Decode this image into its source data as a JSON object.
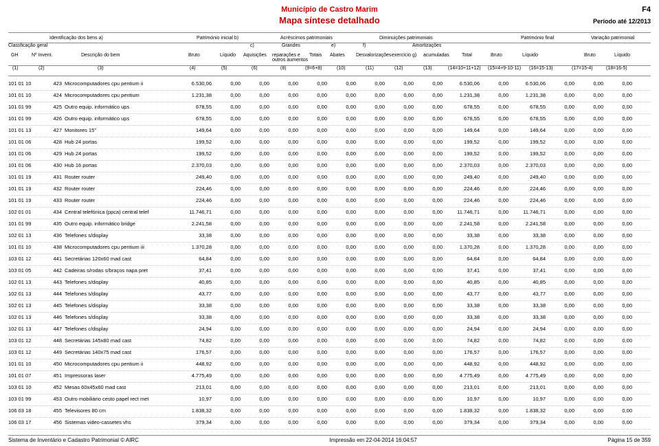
{
  "header": {
    "municipio": "Município de Castro Marim",
    "titulo": "Mapa síntese detalhado",
    "form": "F4",
    "periodo": "Período até 12/2013"
  },
  "groups": {
    "identificacao": "Identificação dos bens  a)",
    "pat_inicial": "Património inicial  b)",
    "acrescimos": "Acréscimos patrimoniais",
    "diminuicoes": "Diminuições patrimoniais",
    "pat_final": "Património final",
    "variacao": "Variação patrimonial"
  },
  "subhdr": {
    "classif": "Classficação geral",
    "gh": "GH",
    "ninvent": "Nº Invent.",
    "descricao": "Descrição do bem",
    "bruto": "Bruto",
    "liquido": "Líquido",
    "c": "c)",
    "aquisicoes": "Aquisições",
    "grandes": "Grandes reparações e outros aumentos",
    "totais": "Totais",
    "e": "e)",
    "abates": "Abates",
    "f": "f)",
    "desval": "Desvalorizações",
    "amort": "Amortizações",
    "exer": "exercício  g)",
    "acum": "acumuladas",
    "total": "Total"
  },
  "idx": {
    "i1": "(1)",
    "i2": "(2)",
    "i3": "(3)",
    "i4": "(4)",
    "i5": "(5)",
    "i6": "(6)",
    "i8": "(8)",
    "i9": "(9=6+8)",
    "i10": "(10)",
    "i11": "(11)",
    "i12": "(12)",
    "i13": "(13)",
    "i14": "(14=10+11+12)",
    "i15": "(15=4+9-10-11)",
    "i16": "(16=15-13)",
    "i17": "(17=15-4)",
    "i18": "(18=16-5)"
  },
  "rows": [
    {
      "gh": "101 01 10",
      "inv": "423",
      "desc": "Microcomputadores cpu pentium ii",
      "v": [
        "6.530,06",
        "0,00",
        "0,00",
        "0,00",
        "0,00",
        "0,00",
        "0,00",
        "0,00",
        "0,00",
        "6.530,06",
        "0,00",
        "6.530,06",
        "0,00",
        "0,00",
        "0,00"
      ]
    },
    {
      "gh": "101 01 10",
      "inv": "424",
      "desc": "Microcomputadores cpu pentium",
      "v": [
        "1.231,38",
        "0,00",
        "0,00",
        "0,00",
        "0,00",
        "0,00",
        "0,00",
        "0,00",
        "0,00",
        "1.231,38",
        "0,00",
        "1.231,38",
        "0,00",
        "0,00",
        "0,00"
      ]
    },
    {
      "gh": "101 01 99",
      "inv": "425",
      "desc": "Outro equip. informático ups",
      "v": [
        "678,55",
        "0,00",
        "0,00",
        "0,00",
        "0,00",
        "0,00",
        "0,00",
        "0,00",
        "0,00",
        "678,55",
        "0,00",
        "678,55",
        "0,00",
        "0,00",
        "0,00"
      ]
    },
    {
      "gh": "101 01 99",
      "inv": "426",
      "desc": "Outro equip. informático ups",
      "v": [
        "678,55",
        "0,00",
        "0,00",
        "0,00",
        "0,00",
        "0,00",
        "0,00",
        "0,00",
        "0,00",
        "678,55",
        "0,00",
        "678,55",
        "0,00",
        "0,00",
        "0,00"
      ]
    },
    {
      "gh": "101 01 13",
      "inv": "427",
      "desc": "Monitores 15\"",
      "v": [
        "149,64",
        "0,00",
        "0,00",
        "0,00",
        "0,00",
        "0,00",
        "0,00",
        "0,00",
        "0,00",
        "149,64",
        "0,00",
        "149,64",
        "0,00",
        "0,00",
        "0,00"
      ]
    },
    {
      "gh": "101 01 06",
      "inv": "428",
      "desc": "Hub 24 portas",
      "v": [
        "199,52",
        "0,00",
        "0,00",
        "0,00",
        "0,00",
        "0,00",
        "0,00",
        "0,00",
        "0,00",
        "199,52",
        "0,00",
        "199,52",
        "0,00",
        "0,00",
        "0,00"
      ]
    },
    {
      "gh": "101 01 06",
      "inv": "429",
      "desc": "Hub 24 portas",
      "v": [
        "199,52",
        "0,00",
        "0,00",
        "0,00",
        "0,00",
        "0,00",
        "0,00",
        "0,00",
        "0,00",
        "199,52",
        "0,00",
        "199,52",
        "0,00",
        "0,00",
        "0,00"
      ]
    },
    {
      "gh": "101 01 06",
      "inv": "430",
      "desc": "Hub 16 portas",
      "v": [
        "2.370,03",
        "0,00",
        "0,00",
        "0,00",
        "0,00",
        "0,00",
        "0,00",
        "0,00",
        "0,00",
        "2.370,03",
        "0,00",
        "2.370,03",
        "0,00",
        "0,00",
        "0,00"
      ]
    },
    {
      "gh": "101 01 19",
      "inv": "431",
      "desc": "Router router",
      "v": [
        "249,40",
        "0,00",
        "0,00",
        "0,00",
        "0,00",
        "0,00",
        "0,00",
        "0,00",
        "0,00",
        "249,40",
        "0,00",
        "249,40",
        "0,00",
        "0,00",
        "0,00"
      ]
    },
    {
      "gh": "101 01 19",
      "inv": "432",
      "desc": "Router router",
      "v": [
        "224,46",
        "0,00",
        "0,00",
        "0,00",
        "0,00",
        "0,00",
        "0,00",
        "0,00",
        "0,00",
        "224,46",
        "0,00",
        "224,46",
        "0,00",
        "0,00",
        "0,00"
      ]
    },
    {
      "gh": "101 01 19",
      "inv": "433",
      "desc": "Router router",
      "v": [
        "224,46",
        "0,00",
        "0,00",
        "0,00",
        "0,00",
        "0,00",
        "0,00",
        "0,00",
        "0,00",
        "224,46",
        "0,00",
        "224,46",
        "0,00",
        "0,00",
        "0,00"
      ]
    },
    {
      "gh": "102 01 01",
      "inv": "434",
      "desc": "Central telefónica (ppca) central telef",
      "v": [
        "11.746,71",
        "0,00",
        "0,00",
        "0,00",
        "0,00",
        "0,00",
        "0,00",
        "0,00",
        "0,00",
        "11.746,71",
        "0,00",
        "11.746,71",
        "0,00",
        "0,00",
        "0,00"
      ]
    },
    {
      "gh": "101 01 99",
      "inv": "435",
      "desc": "Outro equip. informático bridge",
      "v": [
        "2.241,58",
        "0,00",
        "0,00",
        "0,00",
        "0,00",
        "0,00",
        "0,00",
        "0,00",
        "0,00",
        "2.241,58",
        "0,00",
        "2.241,58",
        "0,00",
        "0,00",
        "0,00"
      ]
    },
    {
      "gh": "102 01 13",
      "inv": "436",
      "desc": "Telefones s/display",
      "v": [
        "33,38",
        "0,00",
        "0,00",
        "0,00",
        "0,00",
        "0,00",
        "0,00",
        "0,00",
        "0,00",
        "33,38",
        "0,00",
        "33,38",
        "0,00",
        "0,00",
        "0,00"
      ]
    },
    {
      "gh": "101 01 10",
      "inv": "438",
      "desc": "Microcomputadores cpu pentium iii",
      "v": [
        "1.370,28",
        "0,00",
        "0,00",
        "0,00",
        "0,00",
        "0,00",
        "0,00",
        "0,00",
        "0,00",
        "1.370,28",
        "0,00",
        "1.370,28",
        "0,00",
        "0,00",
        "0,00"
      ]
    },
    {
      "gh": "103 01 12",
      "inv": "441",
      "desc": "Secretárias 120x60 mad cast",
      "v": [
        "64,84",
        "0,00",
        "0,00",
        "0,00",
        "0,00",
        "0,00",
        "0,00",
        "0,00",
        "0,00",
        "64,84",
        "0,00",
        "64,84",
        "0,00",
        "0,00",
        "0,00"
      ]
    },
    {
      "gh": "103 01 05",
      "inv": "442",
      "desc": "Cadeiras s/rodas s/braços napa pret",
      "v": [
        "37,41",
        "0,00",
        "0,00",
        "0,00",
        "0,00",
        "0,00",
        "0,00",
        "0,00",
        "0,00",
        "37,41",
        "0,00",
        "37,41",
        "0,00",
        "0,00",
        "0,00"
      ]
    },
    {
      "gh": "102 01 13",
      "inv": "443",
      "desc": "Telefones s/display",
      "v": [
        "40,85",
        "0,00",
        "0,00",
        "0,00",
        "0,00",
        "0,00",
        "0,00",
        "0,00",
        "0,00",
        "40,85",
        "0,00",
        "40,85",
        "0,00",
        "0,00",
        "0,00"
      ]
    },
    {
      "gh": "102 01 13",
      "inv": "444",
      "desc": "Telefones s/display",
      "v": [
        "43,77",
        "0,00",
        "0,00",
        "0,00",
        "0,00",
        "0,00",
        "0,00",
        "0,00",
        "0,00",
        "43,77",
        "0,00",
        "43,77",
        "0,00",
        "0,00",
        "0,00"
      ]
    },
    {
      "gh": "102 01 13",
      "inv": "445",
      "desc": "Telefones s/display",
      "v": [
        "33,38",
        "0,00",
        "0,00",
        "0,00",
        "0,00",
        "0,00",
        "0,00",
        "0,00",
        "0,00",
        "33,38",
        "0,00",
        "33,38",
        "0,00",
        "0,00",
        "0,00"
      ]
    },
    {
      "gh": "102 01 13",
      "inv": "446",
      "desc": "Telefones s/display",
      "v": [
        "33,38",
        "0,00",
        "0,00",
        "0,00",
        "0,00",
        "0,00",
        "0,00",
        "0,00",
        "0,00",
        "33,38",
        "0,00",
        "33,38",
        "0,00",
        "0,00",
        "0,00"
      ]
    },
    {
      "gh": "102 01 13",
      "inv": "447",
      "desc": "Telefones c/display",
      "v": [
        "24,94",
        "0,00",
        "0,00",
        "0,00",
        "0,00",
        "0,00",
        "0,00",
        "0,00",
        "0,00",
        "24,94",
        "0,00",
        "24,94",
        "0,00",
        "0,00",
        "0,00"
      ]
    },
    {
      "gh": "103 01 12",
      "inv": "448",
      "desc": "Secretárias 145x80 mad cast",
      "v": [
        "74,82",
        "0,00",
        "0,00",
        "0,00",
        "0,00",
        "0,00",
        "0,00",
        "0,00",
        "0,00",
        "74,82",
        "0,00",
        "74,82",
        "0,00",
        "0,00",
        "0,00"
      ]
    },
    {
      "gh": "103 01 12",
      "inv": "449",
      "desc": "Secretárias 140x75 mad cast",
      "v": [
        "176,57",
        "0,00",
        "0,00",
        "0,00",
        "0,00",
        "0,00",
        "0,00",
        "0,00",
        "0,00",
        "176,57",
        "0,00",
        "176,57",
        "0,00",
        "0,00",
        "0,00"
      ]
    },
    {
      "gh": "101 01 10",
      "inv": "450",
      "desc": "Microcomputadores cpu pentium ii",
      "v": [
        "448,92",
        "0,00",
        "0,00",
        "0,00",
        "0,00",
        "0,00",
        "0,00",
        "0,00",
        "0,00",
        "448,92",
        "0,00",
        "448,92",
        "0,00",
        "0,00",
        "0,00"
      ]
    },
    {
      "gh": "101 01 07",
      "inv": "451",
      "desc": "Impressoras laser",
      "v": [
        "4.775,49",
        "0,00",
        "0,00",
        "0,00",
        "0,00",
        "0,00",
        "0,00",
        "0,00",
        "0,00",
        "4.775,49",
        "0,00",
        "4.775,49",
        "0,00",
        "0,00",
        "0,00"
      ]
    },
    {
      "gh": "103 01 10",
      "inv": "452",
      "desc": "Mesas 60x45x60 mad cast",
      "v": [
        "213,01",
        "0,00",
        "0,00",
        "0,00",
        "0,00",
        "0,00",
        "0,00",
        "0,00",
        "0,00",
        "213,01",
        "0,00",
        "213,01",
        "0,00",
        "0,00",
        "0,00"
      ]
    },
    {
      "gh": "103 01 99",
      "inv": "453",
      "desc": "Outro mobiliário cesto papel rect met",
      "v": [
        "10,97",
        "0,00",
        "0,00",
        "0,00",
        "0,00",
        "0,00",
        "0,00",
        "0,00",
        "0,00",
        "10,97",
        "0,00",
        "10,97",
        "0,00",
        "0,00",
        "0,00"
      ]
    },
    {
      "gh": "106 03 18",
      "inv": "455",
      "desc": "Televisores 80 cm",
      "v": [
        "1.838,32",
        "0,00",
        "0,00",
        "0,00",
        "0,00",
        "0,00",
        "0,00",
        "0,00",
        "0,00",
        "1.838,32",
        "0,00",
        "1.838,32",
        "0,00",
        "0,00",
        "0,00"
      ]
    },
    {
      "gh": "106 03 17",
      "inv": "456",
      "desc": "Sistemas video-cassetes vhs",
      "v": [
        "379,34",
        "0,00",
        "0,00",
        "0,00",
        "0,00",
        "0,00",
        "0,00",
        "0,00",
        "0,00",
        "379,34",
        "0,00",
        "379,34",
        "0,00",
        "0,00",
        "0,00"
      ]
    }
  ],
  "footer": {
    "left": "Sistema de Inventário e Cadastro Patrimonial © AIRC",
    "center": "Impressão em 22-04-2014 16:04:57",
    "right": "Página 15 de 359"
  }
}
